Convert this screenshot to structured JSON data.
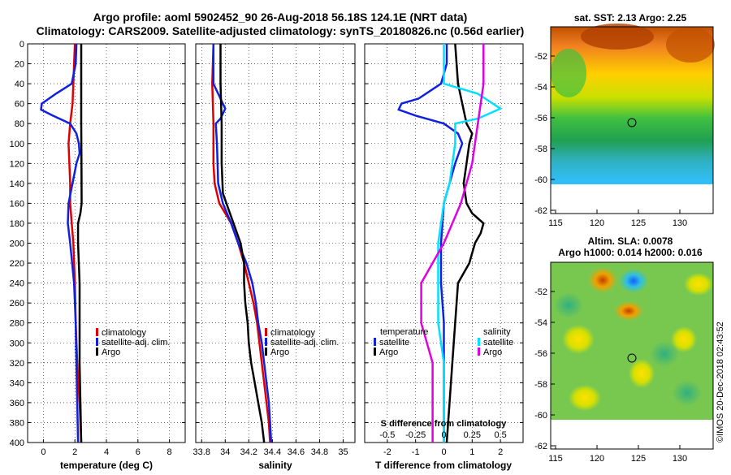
{
  "title": {
    "line1": "Argo profile: aoml 5902452_90 26-Aug-2018 56.18S 124.1E (NRT data)",
    "line2": "Climatology: CARS2009. Satellite-adjusted climatology: synTS_20180826.nc (0.56d earlier)"
  },
  "colors": {
    "climatology": "#e00000",
    "satellite": "#1020e0",
    "argo": "#000000",
    "sat_sal": "#00e0ff",
    "argo_sal": "#e000e0"
  },
  "chart_data": [
    {
      "type": "line",
      "id": "temperature",
      "xlabel": "temperature (deg C)",
      "xlim": [
        -1,
        9
      ],
      "xticks": [
        0,
        2,
        4,
        6,
        8
      ],
      "ylim": [
        0,
        400
      ],
      "yticks": [
        0,
        20,
        40,
        60,
        80,
        100,
        120,
        140,
        160,
        180,
        200,
        220,
        240,
        260,
        280,
        300,
        320,
        340,
        360,
        380,
        400
      ],
      "legend": [
        "climatology",
        "satellite-adj. clim.",
        "Argo"
      ],
      "series": [
        {
          "name": "climatology",
          "color_key": "climatology",
          "depth": [
            0,
            20,
            40,
            60,
            80,
            100,
            120,
            140,
            160,
            180,
            200,
            240,
            280,
            320,
            360,
            400
          ],
          "values": [
            2.0,
            1.95,
            1.9,
            1.85,
            1.7,
            1.6,
            1.65,
            1.7,
            1.7,
            1.8,
            1.9,
            2.0,
            2.05,
            2.15,
            2.3,
            2.4
          ]
        },
        {
          "name": "satellite-adj. clim.",
          "color_key": "satellite",
          "depth": [
            0,
            20,
            40,
            50,
            60,
            66,
            72,
            80,
            90,
            100,
            110,
            120,
            140,
            160,
            180,
            200,
            240,
            280,
            320,
            360,
            400
          ],
          "values": [
            2.1,
            2.05,
            1.8,
            0.8,
            -0.1,
            -0.15,
            0.6,
            1.7,
            2.1,
            2.25,
            2.3,
            2.1,
            1.85,
            1.6,
            1.55,
            1.7,
            1.95,
            2.05,
            2.1,
            2.15,
            2.2
          ]
        },
        {
          "name": "Argo",
          "color_key": "argo",
          "depth": [
            0,
            40,
            80,
            120,
            160,
            170,
            180,
            200,
            240,
            280,
            320,
            360,
            400
          ],
          "values": [
            2.4,
            2.4,
            2.4,
            2.42,
            2.43,
            2.35,
            2.2,
            2.2,
            2.3,
            2.3,
            2.3,
            2.35,
            2.4
          ]
        }
      ]
    },
    {
      "type": "line",
      "id": "salinity",
      "xlabel": "salinity",
      "xlim": [
        33.75,
        35.1
      ],
      "xticks": [
        33.8,
        34,
        34.2,
        34.4,
        34.6,
        34.8,
        35
      ],
      "ylim": [
        0,
        400
      ],
      "legend": [
        "climatology",
        "satellite-adj. clim.",
        "Argo"
      ],
      "series": [
        {
          "name": "climatology",
          "color_key": "climatology",
          "depth": [
            0,
            40,
            80,
            120,
            140,
            160,
            180,
            200,
            220,
            240,
            260,
            280,
            300,
            320,
            340,
            360,
            380,
            400
          ],
          "values": [
            33.9,
            33.89,
            33.9,
            33.9,
            33.91,
            33.95,
            34.05,
            34.11,
            34.16,
            34.2,
            34.24,
            34.27,
            34.29,
            34.31,
            34.33,
            34.35,
            34.37,
            34.38
          ]
        },
        {
          "name": "satellite-adj. clim.",
          "color_key": "satellite",
          "depth": [
            0,
            40,
            55,
            65,
            75,
            80,
            100,
            140,
            160,
            180,
            200,
            220,
            240,
            260,
            280,
            300,
            320,
            340,
            360,
            380,
            400
          ],
          "values": [
            33.9,
            33.9,
            33.96,
            34.0,
            33.96,
            33.92,
            33.93,
            33.94,
            33.98,
            34.05,
            34.11,
            34.18,
            34.23,
            34.26,
            34.28,
            34.31,
            34.33,
            34.35,
            34.37,
            34.38,
            34.39
          ]
        },
        {
          "name": "Argo",
          "color_key": "argo",
          "depth": [
            0,
            40,
            80,
            120,
            150,
            170,
            200,
            220,
            240,
            260,
            280,
            300,
            320,
            340,
            360,
            380,
            400
          ],
          "values": [
            33.96,
            33.96,
            33.97,
            33.97,
            33.98,
            34.04,
            34.13,
            34.16,
            34.16,
            34.17,
            34.19,
            34.2,
            34.22,
            34.25,
            34.28,
            34.31,
            34.33
          ]
        }
      ]
    },
    {
      "type": "line",
      "id": "difference",
      "xlabel": "T difference from climatology",
      "xlim": [
        -2.8,
        2.8
      ],
      "xticks": [
        -2,
        -1,
        0,
        1,
        2
      ],
      "s_xlabel": "S difference from climatology",
      "s_xticks": [
        "-0.5",
        "-0.25",
        "0",
        "0.25",
        "0.5"
      ],
      "ylim": [
        0,
        400
      ],
      "legend_t_title": "temperature",
      "legend_s_title": "salinity",
      "legend": [
        "satellite",
        "Argo",
        "satellite",
        "Argo"
      ],
      "series": [
        {
          "name": "temperature satellite",
          "color_key": "satellite",
          "depth": [
            0,
            20,
            40,
            55,
            60,
            66,
            72,
            80,
            90,
            100,
            120,
            140,
            160,
            200,
            240,
            280,
            320,
            360,
            400
          ],
          "values": [
            0.1,
            0.1,
            -0.1,
            -0.9,
            -1.5,
            -1.6,
            -1.0,
            0.0,
            0.5,
            0.65,
            0.4,
            0.2,
            0.0,
            -0.1,
            -0.1,
            0.0,
            0.0,
            0.0,
            0.0
          ]
        },
        {
          "name": "temperature Argo",
          "color_key": "argo",
          "depth": [
            0,
            40,
            80,
            90,
            100,
            120,
            140,
            160,
            170,
            180,
            190,
            200,
            220,
            240,
            280,
            320,
            360,
            400
          ],
          "values": [
            0.4,
            0.5,
            0.8,
            1.0,
            0.9,
            0.8,
            0.7,
            0.8,
            1.0,
            1.4,
            1.3,
            1.1,
            0.9,
            0.5,
            0.4,
            0.3,
            0.2,
            0.1
          ]
        },
        {
          "name": "salinity satellite",
          "color_key": "sat_sal",
          "depth": [
            0,
            40,
            50,
            65,
            75,
            80,
            100,
            140,
            160,
            200,
            240,
            280,
            320,
            360,
            400
          ],
          "values": [
            0.0,
            0.0,
            0.3,
            0.5,
            0.3,
            0.1,
            0.1,
            0.05,
            0.0,
            -0.05,
            -0.05,
            -0.05,
            0.0,
            0.0,
            0.0
          ]
        },
        {
          "name": "salinity Argo",
          "color_key": "argo_sal",
          "depth": [
            0,
            40,
            80,
            120,
            160,
            200,
            240,
            280,
            320,
            360,
            400
          ],
          "values": [
            0.35,
            0.35,
            0.3,
            0.25,
            0.15,
            0.0,
            -0.2,
            -0.2,
            -0.1,
            -0.1,
            -0.1
          ]
        }
      ]
    }
  ],
  "maps": {
    "sst": {
      "title": "sat. SST: 2.13 Argo: 2.25",
      "yticks": [
        "-52",
        "-54",
        "-56",
        "-58",
        "-60",
        "-62"
      ],
      "xticks": [
        "115",
        "120",
        "125",
        "130"
      ]
    },
    "sla": {
      "title1": "Altim. SLA: 0.0078",
      "title2": "Argo h1000: 0.014 h2000: 0.016",
      "yticks": [
        "-52",
        "-54",
        "-56",
        "-58",
        "-60",
        "-62"
      ],
      "xticks": [
        "115",
        "120",
        "125",
        "130"
      ]
    }
  },
  "credit": "©IMOS 20-Dec-2018 02:43:52"
}
